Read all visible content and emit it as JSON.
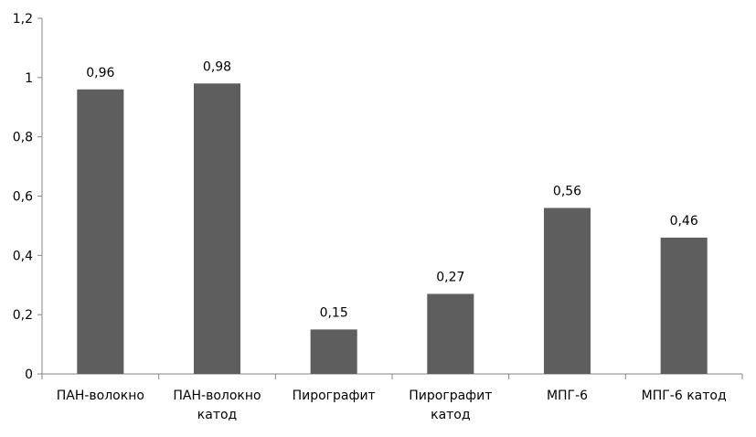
{
  "chart_data": {
    "type": "bar",
    "title": "",
    "xlabel": "",
    "ylabel": "",
    "ylim": [
      0,
      1.2
    ],
    "yticks": [
      "0",
      "0,2",
      "0,4",
      "0,6",
      "0,8",
      "1",
      "1,2"
    ],
    "grid": false,
    "legend": "none",
    "bar_color": "#5e5e5e",
    "categories": [
      [
        "ПАН-волокно"
      ],
      [
        "ПАН-волокно",
        "катод"
      ],
      [
        "Пирографит"
      ],
      [
        "Пирографит",
        "катод"
      ],
      [
        "МПГ-6"
      ],
      [
        "МПГ-6 катод"
      ]
    ],
    "values": [
      0.96,
      0.98,
      0.15,
      0.27,
      0.56,
      0.46
    ],
    "data_labels": [
      "0,96",
      "0,98",
      "0,15",
      "0,27",
      "0,56",
      "0,46"
    ]
  }
}
